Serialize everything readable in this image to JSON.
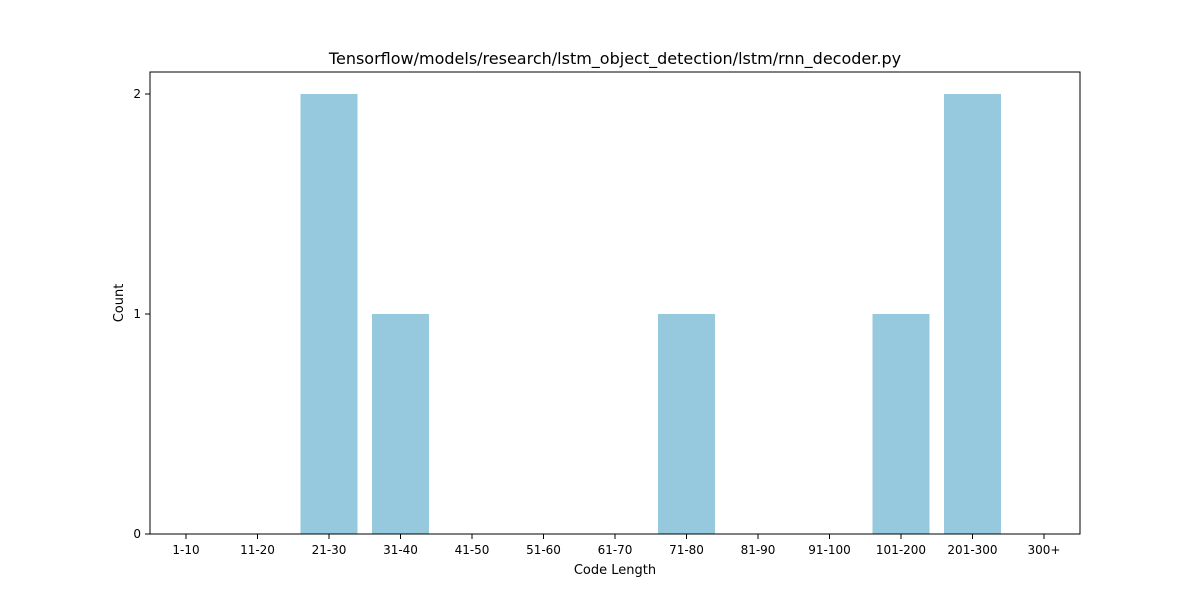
{
  "chart_data": {
    "type": "bar",
    "title": "Tensorflow/models/research/lstm_object_detection/lstm/rnn_decoder.py",
    "xlabel": "Code Length",
    "ylabel": "Count",
    "categories": [
      "1-10",
      "11-20",
      "21-30",
      "31-40",
      "41-50",
      "51-60",
      "61-70",
      "71-80",
      "81-90",
      "91-100",
      "101-200",
      "201-300",
      "300+"
    ],
    "values": [
      0,
      0,
      2,
      1,
      0,
      0,
      0,
      1,
      0,
      0,
      1,
      2,
      0
    ],
    "yticks": [
      0,
      1,
      2
    ],
    "ylim": [
      0,
      2.1
    ],
    "bar_color": "#96c9de",
    "grid": false,
    "legend": "none"
  }
}
